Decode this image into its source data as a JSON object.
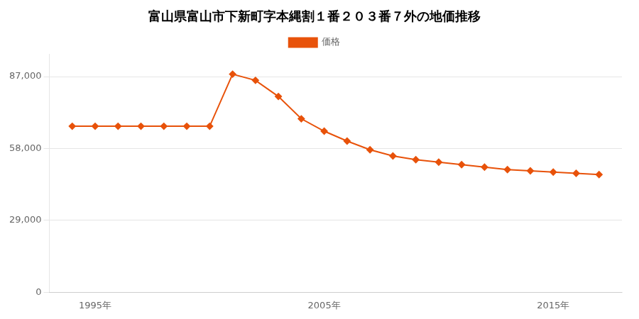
{
  "chart_data": {
    "type": "line",
    "title": "富山県富山市下新町字本縄割１番２０３番７外の地価推移",
    "x": [
      1994,
      1995,
      1996,
      1997,
      1998,
      1999,
      2000,
      2001,
      2002,
      2003,
      2004,
      2005,
      2006,
      2007,
      2008,
      2009,
      2010,
      2011,
      2012,
      2013,
      2014,
      2015,
      2016,
      2017
    ],
    "series": [
      {
        "name": "価格",
        "color": "#e8520a",
        "marker": "diamond",
        "values": [
          67000,
          67000,
          67000,
          67000,
          67000,
          67000,
          67000,
          88000,
          85500,
          79000,
          70000,
          65000,
          61000,
          57500,
          55000,
          53500,
          52500,
          51500,
          50500,
          49500,
          49000,
          48500,
          48000,
          47500
        ]
      }
    ],
    "xlim": [
      1993,
      2018
    ],
    "xticks": [
      {
        "value": 1995,
        "label": "1995年"
      },
      {
        "value": 2005,
        "label": "2005年"
      },
      {
        "value": 2015,
        "label": "2015年"
      }
    ],
    "ylim": [
      0,
      96000
    ],
    "yticks": [
      0,
      {
        "value": 29000,
        "label": "29,000"
      },
      {
        "value": 58000,
        "label": "58,000"
      },
      {
        "value": 87000,
        "label": "87,000"
      }
    ],
    "grid": "y",
    "legend": "top"
  }
}
